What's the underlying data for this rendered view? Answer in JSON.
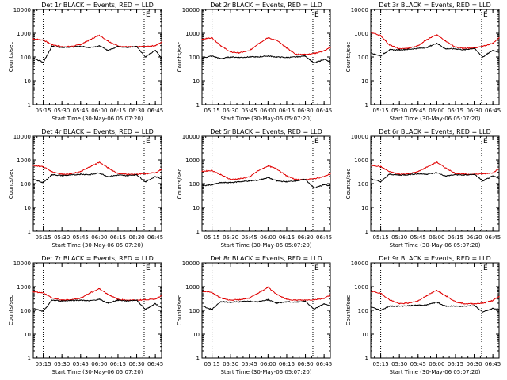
{
  "colors": {
    "events": "#000000",
    "lld": "#e00000",
    "axis": "#000000"
  },
  "chart_data": [
    {
      "type": "line",
      "title": "Det 1r BLACK = Events, RED = LLD",
      "xlabel": "Start Time (30-May-06 05:07:20)",
      "ylabel": "Counts/sec",
      "xticks": [
        "05:15",
        "05:30",
        "05:45",
        "06:00",
        "06:15",
        "06:30",
        "06:45"
      ],
      "yticks": [
        "1",
        "10",
        "100",
        "1000",
        "10000"
      ],
      "ylim": [
        1,
        10000
      ],
      "markers": [
        "05:15",
        "06:36"
      ],
      "marker_labels": [
        "",
        "E"
      ],
      "x": [
        "05:07",
        "05:15",
        "05:22",
        "05:30",
        "05:37",
        "05:45",
        "05:52",
        "06:00",
        "06:07",
        "06:15",
        "06:22",
        "06:30",
        "06:37",
        "06:45",
        "06:50"
      ],
      "series": [
        {
          "name": "LLD",
          "values": [
            580,
            520,
            330,
            270,
            280,
            330,
            520,
            830,
            470,
            290,
            270,
            270,
            280,
            300,
            420
          ]
        },
        {
          "name": "Events",
          "values": [
            90,
            60,
            280,
            250,
            260,
            280,
            250,
            290,
            190,
            280,
            250,
            280,
            100,
            190,
            90
          ]
        }
      ]
    },
    {
      "type": "line",
      "title": "Det 2r BLACK = Events, RED = LLD",
      "xlabel": "Start Time (30-May-06 05:07:20)",
      "ylabel": "Counts/sec",
      "xticks": [
        "05:15",
        "05:30",
        "05:45",
        "06:00",
        "06:15",
        "06:30",
        "06:45"
      ],
      "yticks": [
        "1",
        "10",
        "100",
        "1000",
        "10000"
      ],
      "ylim": [
        1,
        10000
      ],
      "markers": [
        "05:15",
        "06:36"
      ],
      "marker_labels": [
        "",
        "E"
      ],
      "x": [
        "05:07",
        "05:15",
        "05:22",
        "05:30",
        "05:37",
        "05:45",
        "05:52",
        "06:00",
        "06:07",
        "06:15",
        "06:22",
        "06:30",
        "06:37",
        "06:45",
        "06:50"
      ],
      "series": [
        {
          "name": "LLD",
          "values": [
            560,
            650,
            300,
            160,
            150,
            180,
            360,
            640,
            500,
            240,
            130,
            130,
            140,
            180,
            250
          ]
        },
        {
          "name": "Events",
          "values": [
            90,
            110,
            85,
            100,
            95,
            100,
            100,
            110,
            100,
            95,
            100,
            110,
            55,
            80,
            60
          ]
        }
      ]
    },
    {
      "type": "line",
      "title": "Det 3r BLACK = Events, RED = LLD",
      "xlabel": "Start Time (30-May-06 05:07:20)",
      "ylabel": "Counts/sec",
      "xticks": [
        "05:15",
        "05:30",
        "05:45",
        "06:00",
        "06:15",
        "06:30",
        "06:45"
      ],
      "yticks": [
        "1",
        "10",
        "100",
        "1000",
        "10000"
      ],
      "ylim": [
        1,
        10000
      ],
      "markers": [
        "05:15",
        "06:36"
      ],
      "marker_labels": [
        "",
        "E"
      ],
      "x": [
        "05:07",
        "05:15",
        "05:22",
        "05:30",
        "05:37",
        "05:45",
        "05:52",
        "06:00",
        "06:07",
        "06:15",
        "06:22",
        "06:30",
        "06:37",
        "06:45",
        "06:50"
      ],
      "series": [
        {
          "name": "LLD",
          "values": [
            1100,
            800,
            320,
            220,
            230,
            300,
            550,
            850,
            480,
            260,
            230,
            240,
            280,
            380,
            650
          ]
        },
        {
          "name": "Events",
          "values": [
            150,
            110,
            200,
            200,
            210,
            230,
            250,
            380,
            220,
            220,
            200,
            230,
            100,
            190,
            160
          ]
        }
      ]
    },
    {
      "type": "line",
      "title": "Det 4r BLACK = Events, RED = LLD",
      "xlabel": "Start Time (30-May-06 05:07:20)",
      "ylabel": "Counts/sec",
      "xticks": [
        "05:15",
        "05:30",
        "05:45",
        "06:00",
        "06:15",
        "06:30",
        "06:45"
      ],
      "yticks": [
        "1",
        "10",
        "100",
        "1000",
        "10000"
      ],
      "ylim": [
        1,
        10000
      ],
      "markers": [
        "05:15",
        "06:36"
      ],
      "marker_labels": [
        "",
        "E"
      ],
      "x": [
        "05:07",
        "05:15",
        "05:22",
        "05:30",
        "05:37",
        "05:45",
        "05:52",
        "06:00",
        "06:07",
        "06:15",
        "06:22",
        "06:30",
        "06:37",
        "06:45",
        "06:50"
      ],
      "series": [
        {
          "name": "LLD",
          "values": [
            580,
            520,
            320,
            250,
            260,
            320,
            500,
            800,
            460,
            270,
            250,
            250,
            260,
            290,
            400
          ]
        },
        {
          "name": "Events",
          "values": [
            150,
            110,
            240,
            220,
            230,
            250,
            240,
            280,
            200,
            230,
            220,
            240,
            120,
            200,
            160
          ]
        }
      ]
    },
    {
      "type": "line",
      "title": "Det 5r BLACK = Events, RED = LLD",
      "xlabel": "Start Time (30-May-06 05:07:20)",
      "ylabel": "Counts/sec",
      "xticks": [
        "05:15",
        "05:30",
        "05:45",
        "06:00",
        "06:15",
        "06:30",
        "06:45"
      ],
      "yticks": [
        "1",
        "10",
        "100",
        "1000",
        "10000"
      ],
      "ylim": [
        1,
        10000
      ],
      "markers": [
        "05:15",
        "06:36"
      ],
      "marker_labels": [
        "",
        "E"
      ],
      "x": [
        "05:07",
        "05:15",
        "05:22",
        "05:30",
        "05:37",
        "05:45",
        "05:52",
        "06:00",
        "06:07",
        "06:15",
        "06:22",
        "06:30",
        "06:37",
        "06:45",
        "06:50"
      ],
      "series": [
        {
          "name": "LLD",
          "values": [
            330,
            360,
            240,
            150,
            160,
            190,
            350,
            560,
            420,
            210,
            150,
            150,
            160,
            200,
            260
          ]
        },
        {
          "name": "Events",
          "values": [
            80,
            90,
            110,
            110,
            120,
            130,
            140,
            180,
            130,
            120,
            130,
            150,
            65,
            90,
            80
          ]
        }
      ]
    },
    {
      "type": "line",
      "title": "Det 6r BLACK = Events, RED = LLD",
      "xlabel": "Start Time (30-May-06 05:07:20)",
      "ylabel": "Counts/sec",
      "xticks": [
        "05:15",
        "05:30",
        "05:45",
        "06:00",
        "06:15",
        "06:30",
        "06:45"
      ],
      "yticks": [
        "1",
        "10",
        "100",
        "1000",
        "10000"
      ],
      "ylim": [
        1,
        10000
      ],
      "markers": [
        "05:15",
        "06:36"
      ],
      "marker_labels": [
        "",
        "E"
      ],
      "x": [
        "05:07",
        "05:15",
        "05:22",
        "05:30",
        "05:37",
        "05:45",
        "05:52",
        "06:00",
        "06:07",
        "06:15",
        "06:22",
        "06:30",
        "06:37",
        "06:45",
        "06:50"
      ],
      "series": [
        {
          "name": "LLD",
          "values": [
            600,
            520,
            320,
            250,
            260,
            320,
            500,
            800,
            460,
            270,
            250,
            250,
            260,
            290,
            420
          ]
        },
        {
          "name": "Events",
          "values": [
            160,
            120,
            250,
            230,
            240,
            260,
            250,
            290,
            210,
            240,
            230,
            250,
            130,
            210,
            170
          ]
        }
      ]
    },
    {
      "type": "line",
      "title": "Det 7r BLACK = Events, RED = LLD",
      "xlabel": "Start Time (30-May-06 05:07:20)",
      "ylabel": "Counts/sec",
      "xticks": [
        "05:15",
        "05:30",
        "05:45",
        "06:00",
        "06:15",
        "06:30",
        "06:45"
      ],
      "yticks": [
        "1",
        "10",
        "100",
        "1000",
        "10000"
      ],
      "ylim": [
        1,
        10000
      ],
      "markers": [
        "05:15",
        "06:36"
      ],
      "marker_labels": [
        "",
        "E"
      ],
      "x": [
        "05:07",
        "05:15",
        "05:22",
        "05:30",
        "05:37",
        "05:45",
        "05:52",
        "06:00",
        "06:07",
        "06:15",
        "06:22",
        "06:30",
        "06:37",
        "06:45",
        "06:50"
      ],
      "series": [
        {
          "name": "LLD",
          "values": [
            600,
            560,
            330,
            270,
            280,
            330,
            520,
            820,
            470,
            290,
            270,
            270,
            280,
            300,
            430
          ]
        },
        {
          "name": "Events",
          "values": [
            120,
            90,
            270,
            250,
            260,
            270,
            250,
            290,
            200,
            270,
            250,
            270,
            110,
            190,
            130
          ]
        }
      ]
    },
    {
      "type": "line",
      "title": "Det 8r BLACK = Events, RED = LLD",
      "xlabel": "Start Time (30-May-06 05:07:20)",
      "ylabel": "Counts/sec",
      "xticks": [
        "05:15",
        "05:30",
        "05:45",
        "06:00",
        "06:15",
        "06:30",
        "06:45"
      ],
      "yticks": [
        "1",
        "10",
        "100",
        "1000",
        "10000"
      ],
      "ylim": [
        1,
        10000
      ],
      "markers": [
        "05:15",
        "06:36"
      ],
      "marker_labels": [
        "",
        "E"
      ],
      "x": [
        "05:07",
        "05:15",
        "05:22",
        "05:30",
        "05:37",
        "05:45",
        "05:52",
        "06:00",
        "06:07",
        "06:15",
        "06:22",
        "06:30",
        "06:37",
        "06:45",
        "06:50"
      ],
      "series": [
        {
          "name": "LLD",
          "values": [
            650,
            560,
            330,
            270,
            280,
            330,
            520,
            950,
            470,
            290,
            270,
            270,
            280,
            320,
            450
          ]
        },
        {
          "name": "Events",
          "values": [
            150,
            110,
            230,
            220,
            230,
            240,
            230,
            280,
            200,
            230,
            220,
            240,
            110,
            190,
            150
          ]
        }
      ]
    },
    {
      "type": "line",
      "title": "Det 9r BLACK = Events, RED = LLD",
      "xlabel": "Start Time (30-May-06 05:07:20)",
      "ylabel": "Counts/sec",
      "xticks": [
        "05:15",
        "05:30",
        "05:45",
        "06:00",
        "06:15",
        "06:30",
        "06:45"
      ],
      "yticks": [
        "1",
        "10",
        "100",
        "1000",
        "10000"
      ],
      "ylim": [
        1,
        10000
      ],
      "markers": [
        "05:15",
        "06:36"
      ],
      "marker_labels": [
        "",
        "E"
      ],
      "x": [
        "05:07",
        "05:15",
        "05:22",
        "05:30",
        "05:37",
        "05:45",
        "05:52",
        "06:00",
        "06:07",
        "06:15",
        "06:22",
        "06:30",
        "06:37",
        "06:45",
        "06:50"
      ],
      "series": [
        {
          "name": "LLD",
          "values": [
            650,
            520,
            280,
            190,
            200,
            250,
            420,
            700,
            420,
            230,
            190,
            190,
            200,
            260,
            380
          ]
        },
        {
          "name": "Events",
          "values": [
            140,
            100,
            150,
            150,
            155,
            165,
            170,
            220,
            150,
            150,
            150,
            160,
            85,
            120,
            110
          ]
        }
      ]
    }
  ]
}
